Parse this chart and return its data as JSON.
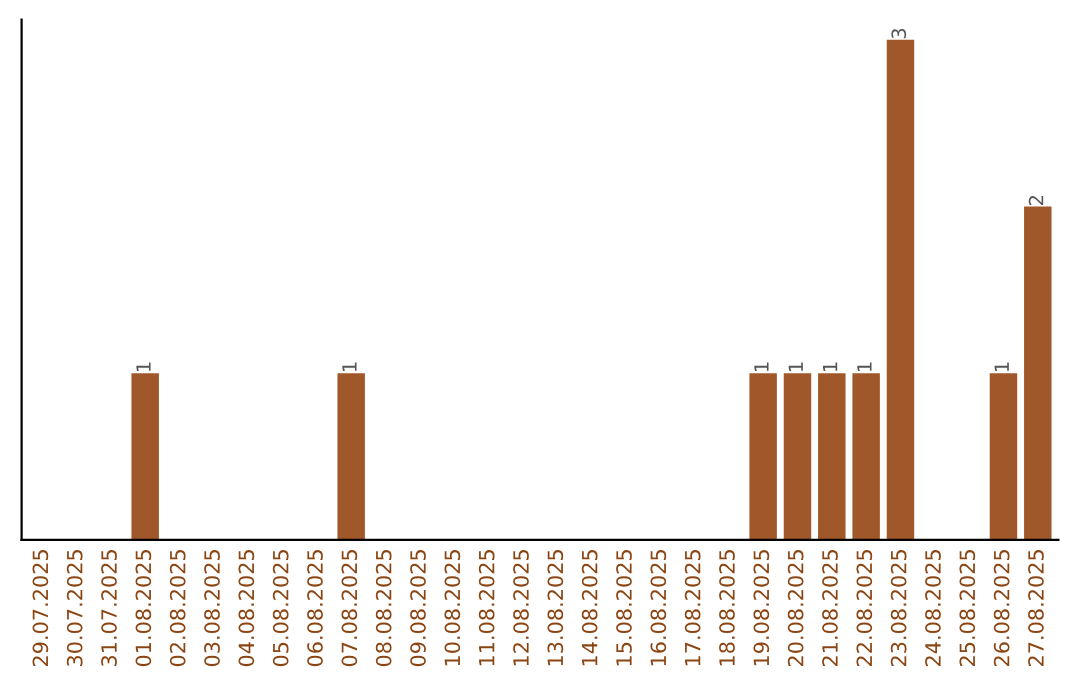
{
  "chart_data": {
    "type": "bar",
    "categories": [
      "29.07.2025",
      "30.07.2025",
      "31.07.2025",
      "01.08.2025",
      "02.08.2025",
      "03.08.2025",
      "04.08.2025",
      "05.08.2025",
      "06.08.2025",
      "07.08.2025",
      "08.08.2025",
      "09.08.2025",
      "10.08.2025",
      "11.08.2025",
      "12.08.2025",
      "13.08.2025",
      "14.08.2025",
      "15.08.2025",
      "16.08.2025",
      "17.08.2025",
      "18.08.2025",
      "19.08.2025",
      "20.08.2025",
      "21.08.2025",
      "22.08.2025",
      "23.08.2025",
      "24.08.2025",
      "25.08.2025",
      "26.08.2025",
      "27.08.2025"
    ],
    "values": [
      0,
      0,
      0,
      1,
      0,
      0,
      0,
      0,
      0,
      1,
      0,
      0,
      0,
      0,
      0,
      0,
      0,
      0,
      0,
      0,
      0,
      1,
      1,
      1,
      1,
      3,
      0,
      0,
      1,
      2
    ],
    "value_labels": [
      null,
      null,
      null,
      "1",
      null,
      null,
      null,
      null,
      null,
      "1",
      null,
      null,
      null,
      null,
      null,
      null,
      null,
      null,
      null,
      null,
      null,
      "1",
      "1",
      "1",
      "1",
      "3",
      null,
      null,
      "1",
      "2"
    ],
    "color": "#a0582a",
    "tick_labels": "x",
    "grid": false,
    "legend": false
  }
}
